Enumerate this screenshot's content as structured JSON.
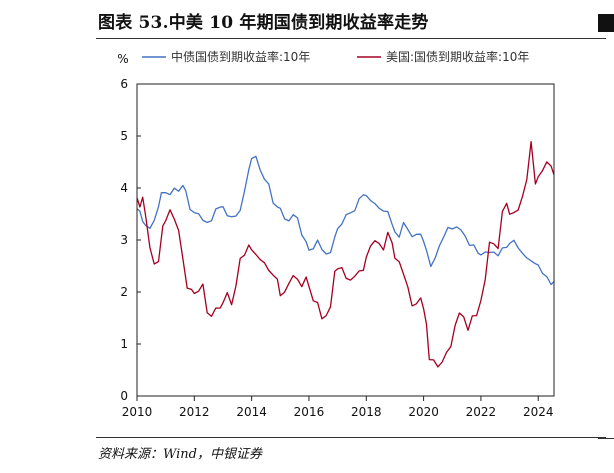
{
  "title": "图表 53.中美 10 年期国债到期收益率走势",
  "source": "资料来源：Wind，中银证券",
  "chart_data": {
    "type": "line",
    "title": "图表 53.中美 10 年期国债到期收益率走势",
    "ylabel": "%",
    "xlabel": "",
    "ylim": [
      0,
      6
    ],
    "xlim": [
      2010,
      2024.55
    ],
    "yticks": [
      0,
      1,
      2,
      3,
      4,
      5,
      6
    ],
    "xticks": [
      2010,
      2012,
      2014,
      2016,
      2018,
      2020,
      2022,
      2024
    ],
    "legend_position": "top",
    "series": [
      {
        "name": "中债国债到期收益率:10年",
        "color": "#4472C4",
        "x": [
          2010.0,
          2010.1,
          2010.2,
          2010.3,
          2010.45,
          2010.6,
          2010.75,
          2010.85,
          2011.0,
          2011.15,
          2011.3,
          2011.45,
          2011.6,
          2011.7,
          2011.85,
          2012.0,
          2012.15,
          2012.3,
          2012.45,
          2012.6,
          2012.75,
          2012.9,
          2013.0,
          2013.15,
          2013.3,
          2013.45,
          2013.6,
          2013.75,
          2013.9,
          2014.0,
          2014.15,
          2014.3,
          2014.45,
          2014.6,
          2014.75,
          2014.9,
          2015.0,
          2015.15,
          2015.3,
          2015.45,
          2015.6,
          2015.75,
          2015.9,
          2016.0,
          2016.15,
          2016.3,
          2016.45,
          2016.6,
          2016.75,
          2016.9,
          2017.0,
          2017.15,
          2017.3,
          2017.45,
          2017.6,
          2017.75,
          2017.9,
          2018.0,
          2018.15,
          2018.3,
          2018.45,
          2018.6,
          2018.75,
          2018.9,
          2019.0,
          2019.15,
          2019.3,
          2019.45,
          2019.6,
          2019.75,
          2019.9,
          2020.0,
          2020.1,
          2020.25,
          2020.4,
          2020.55,
          2020.7,
          2020.85,
          2021.0,
          2021.15,
          2021.3,
          2021.45,
          2021.6,
          2021.75,
          2021.9,
          2022.0,
          2022.15,
          2022.3,
          2022.45,
          2022.6,
          2022.75,
          2022.9,
          2023.0,
          2023.15,
          2023.3,
          2023.45,
          2023.6,
          2023.75,
          2023.9,
          2024.0,
          2024.15,
          2024.3,
          2024.45,
          2024.55
        ],
        "values": [
          3.6,
          3.5,
          3.35,
          3.25,
          3.2,
          3.35,
          3.6,
          3.9,
          3.95,
          3.9,
          4.0,
          3.95,
          4.1,
          3.95,
          3.6,
          3.5,
          3.45,
          3.35,
          3.3,
          3.35,
          3.55,
          3.6,
          3.6,
          3.5,
          3.5,
          3.5,
          3.6,
          4.0,
          4.4,
          4.6,
          4.55,
          4.3,
          4.15,
          4.05,
          3.7,
          3.6,
          3.55,
          3.35,
          3.4,
          3.5,
          3.45,
          3.1,
          3.0,
          2.85,
          2.85,
          2.95,
          2.8,
          2.7,
          2.75,
          3.05,
          3.2,
          3.3,
          3.5,
          3.55,
          3.6,
          3.8,
          3.9,
          3.9,
          3.8,
          3.75,
          3.6,
          3.55,
          3.5,
          3.3,
          3.15,
          3.05,
          3.3,
          3.25,
          3.1,
          3.15,
          3.15,
          3.0,
          2.85,
          2.55,
          2.7,
          2.85,
          3.05,
          3.2,
          3.2,
          3.25,
          3.15,
          3.05,
          2.95,
          2.95,
          2.8,
          2.75,
          2.8,
          2.8,
          2.8,
          2.7,
          2.8,
          2.85,
          2.9,
          2.95,
          2.8,
          2.7,
          2.6,
          2.65,
          2.6,
          2.55,
          2.4,
          2.3,
          2.2,
          2.25
        ]
      },
      {
        "name": "美国:国债到期收益率:10年",
        "color": "#A50021",
        "x": [
          2010.0,
          2010.1,
          2010.2,
          2010.3,
          2010.45,
          2010.6,
          2010.75,
          2010.9,
          2011.0,
          2011.15,
          2011.3,
          2011.45,
          2011.6,
          2011.75,
          2011.9,
          2012.0,
          2012.15,
          2012.3,
          2012.45,
          2012.6,
          2012.75,
          2012.9,
          2013.0,
          2013.15,
          2013.3,
          2013.45,
          2013.6,
          2013.75,
          2013.9,
          2014.0,
          2014.15,
          2014.3,
          2014.45,
          2014.6,
          2014.75,
          2014.9,
          2015.0,
          2015.15,
          2015.3,
          2015.45,
          2015.6,
          2015.75,
          2015.9,
          2016.0,
          2016.15,
          2016.3,
          2016.45,
          2016.6,
          2016.75,
          2016.9,
          2017.0,
          2017.15,
          2017.3,
          2017.45,
          2017.6,
          2017.75,
          2017.9,
          2018.0,
          2018.15,
          2018.3,
          2018.45,
          2018.6,
          2018.75,
          2018.9,
          2019.0,
          2019.15,
          2019.3,
          2019.45,
          2019.6,
          2019.75,
          2019.9,
          2020.0,
          2020.1,
          2020.2,
          2020.35,
          2020.5,
          2020.65,
          2020.8,
          2020.95,
          2021.1,
          2021.25,
          2021.4,
          2021.55,
          2021.7,
          2021.85,
          2022.0,
          2022.15,
          2022.3,
          2022.45,
          2022.6,
          2022.75,
          2022.9,
          2023.0,
          2023.15,
          2023.3,
          2023.45,
          2023.6,
          2023.75,
          2023.9,
          2024.0,
          2024.15,
          2024.3,
          2024.45,
          2024.55
        ],
        "values": [
          3.8,
          3.65,
          3.85,
          3.5,
          2.9,
          2.55,
          2.6,
          3.3,
          3.4,
          3.55,
          3.4,
          3.15,
          2.6,
          2.05,
          2.0,
          1.95,
          2.05,
          2.2,
          1.6,
          1.55,
          1.7,
          1.7,
          1.85,
          1.95,
          1.7,
          2.1,
          2.6,
          2.7,
          2.85,
          2.8,
          2.7,
          2.65,
          2.6,
          2.45,
          2.35,
          2.3,
          1.95,
          2.0,
          2.15,
          2.3,
          2.2,
          2.05,
          2.25,
          2.1,
          1.8,
          1.75,
          1.5,
          1.6,
          1.75,
          2.4,
          2.45,
          2.5,
          2.3,
          2.2,
          2.3,
          2.35,
          2.4,
          2.65,
          2.85,
          2.95,
          2.9,
          2.85,
          3.15,
          2.95,
          2.7,
          2.6,
          2.4,
          2.1,
          1.7,
          1.75,
          1.85,
          1.65,
          1.35,
          0.7,
          0.65,
          0.6,
          0.7,
          0.85,
          0.95,
          1.4,
          1.65,
          1.55,
          1.3,
          1.5,
          1.5,
          1.8,
          2.2,
          2.95,
          2.9,
          2.8,
          3.6,
          3.75,
          3.5,
          3.55,
          3.6,
          3.85,
          4.2,
          4.9,
          4.05,
          4.2,
          4.3,
          4.5,
          4.4,
          4.2
        ]
      }
    ]
  }
}
